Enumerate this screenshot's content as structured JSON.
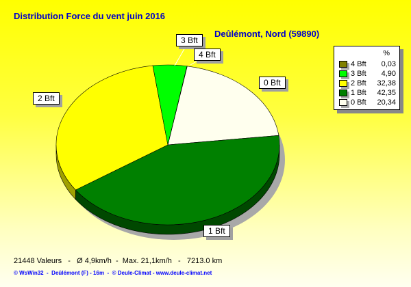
{
  "chart_data": {
    "type": "pie",
    "title": "Distribution Force du vent  juin 2016",
    "subtitle": "Deûlémont, Nord (59890)",
    "legend_header": "%",
    "legend_placement": "right",
    "slices": [
      {
        "label": "4 Bft",
        "value": 0.03,
        "value_text": "0,03",
        "color": "#808000",
        "side": "#505000"
      },
      {
        "label": "3 Bft",
        "value": 4.9,
        "value_text": "4,90",
        "color": "#00ff00",
        "side": "#00a000"
      },
      {
        "label": "2 Bft",
        "value": 32.38,
        "value_text": "32,38",
        "color": "#ffff00",
        "side": "#a0a000"
      },
      {
        "label": "1 Bft",
        "value": 42.35,
        "value_text": "42,35",
        "color": "#008000",
        "side": "#004800"
      },
      {
        "label": "0 Bft",
        "value": 20.34,
        "value_text": "20,34",
        "color": "#ffffee",
        "side": "#b8b8a8"
      }
    ]
  },
  "footer": {
    "stats": "21448 Valeurs   -   Ø 4,9km/h  -  Max. 21,1km/h   -   7213.0 km",
    "credits": "© WsWin32  -  Deûlémont (F) - 16m  -  © Deule-Climat - www.deule-climat.net"
  }
}
